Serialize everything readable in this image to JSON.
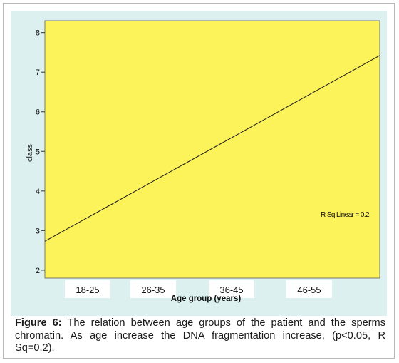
{
  "chart_data": {
    "type": "line",
    "categories": [
      "18-25",
      "26-35",
      "36-45",
      "46-55"
    ],
    "x_range": [
      0,
      5
    ],
    "ylim": [
      1.8,
      8.3
    ],
    "yticks": [
      2,
      3,
      4,
      5,
      6,
      7,
      8
    ],
    "ylabel": "class",
    "xlabel": "Age group (years)",
    "series": [
      {
        "x": [
          0,
          5
        ],
        "y": [
          2.73,
          7.42
        ]
      }
    ],
    "annotation": "R Sq Linear = 0.2",
    "grid": false,
    "plot_color": "#fcf25a",
    "background_color": "#dcf0f0"
  },
  "caption": {
    "label": "Figure 6:",
    "text": "The relation between age groups of the patient and the sperms chromatin. As age increase the DNA fragmentation increase, (p<0.05, R Sq=0.2)."
  }
}
